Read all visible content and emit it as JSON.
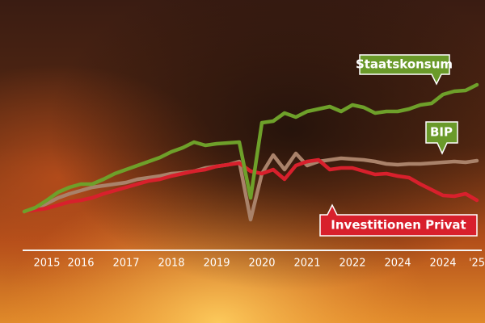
{
  "chart_data": {
    "type": "line",
    "categories": [
      null,
      null,
      "2015",
      null,
      null,
      "2016",
      null,
      null,
      null,
      "2017",
      null,
      null,
      null,
      "2018",
      null,
      null,
      null,
      "2019",
      null,
      null,
      null,
      "2020",
      null,
      null,
      null,
      "2021",
      null,
      null,
      null,
      "2022",
      null,
      null,
      null,
      "2024",
      null,
      null,
      null,
      "2024",
      null,
      null,
      "'25"
    ],
    "ylim": [
      0,
      120
    ],
    "series": [
      {
        "name": "BIP",
        "color": "#a9826a",
        "values": [
          19,
          21,
          24,
          27.5,
          30,
          32,
          34,
          35,
          36,
          37,
          39,
          40,
          41,
          42.5,
          43,
          44,
          46,
          47,
          48,
          50,
          14,
          42.5,
          54,
          45,
          55,
          47.5,
          50,
          51,
          52,
          51.5,
          51,
          50,
          48.5,
          48,
          48.5,
          48.5,
          49,
          49.5,
          50,
          49.5,
          50.5
        ]
      },
      {
        "name": "Investitionen Privat",
        "color": "#d8202c",
        "values": [
          19,
          20,
          21,
          23,
          25,
          26,
          27.5,
          30,
          32,
          34,
          36,
          38,
          39,
          41,
          42.5,
          44,
          45,
          47,
          48,
          49,
          44,
          42.5,
          45,
          39,
          47.5,
          50,
          51,
          45,
          46,
          46,
          44,
          42,
          42.5,
          41,
          40,
          36,
          32.5,
          29,
          28.5,
          30,
          26
        ]
      },
      {
        "name": "Staatskonsum",
        "color": "#6ea02a",
        "values": [
          19,
          21.5,
          26,
          31,
          34,
          36,
          36,
          39,
          42.5,
          45,
          47.5,
          50,
          52.5,
          56,
          58.5,
          62,
          60,
          61,
          61.5,
          62,
          27.5,
          74,
          75,
          80,
          77.5,
          81,
          82.5,
          84,
          81,
          85,
          83.5,
          80,
          81,
          81,
          82.5,
          85,
          86,
          91.5,
          93.5,
          94,
          97.5
        ]
      }
    ]
  }
}
